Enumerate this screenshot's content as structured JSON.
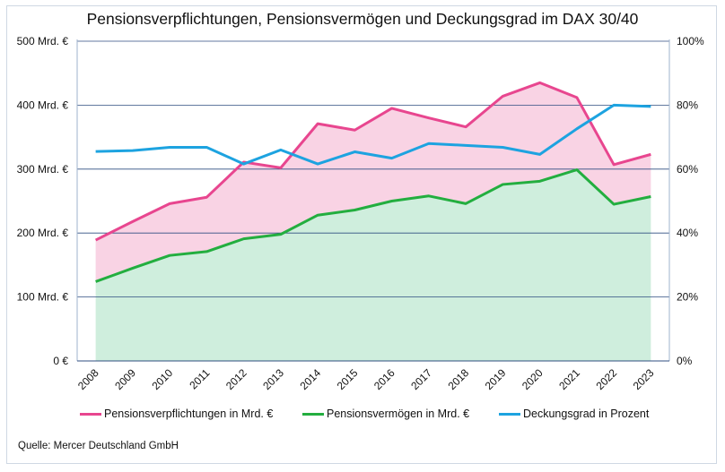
{
  "chart_data": {
    "type": "area",
    "title": "Pensionsverpflichtungen, Pensionsvermögen und Deckungsgrad im DAX 30/40",
    "source": "Quelle: Mercer Deutschland GmbH",
    "x": [
      "2008",
      "2009",
      "2010",
      "2011",
      "2012",
      "2013",
      "2014",
      "2015",
      "2016",
      "2017",
      "2018",
      "2019",
      "2020",
      "2021",
      "2022",
      "2023"
    ],
    "y_left": {
      "ticks": [
        "0 €",
        "100 Mrd. €",
        "200 Mrd. €",
        "300 Mrd. €",
        "400 Mrd. €",
        "500 Mrd. €"
      ],
      "ylim": [
        0,
        500
      ]
    },
    "y_right": {
      "ticks": [
        "0%",
        "20%",
        "40%",
        "60%",
        "80%",
        "100%"
      ],
      "ylim": [
        0,
        100
      ]
    },
    "series": [
      {
        "name": "Pensionsverpflichtungen in Mrd. €",
        "axis": "left",
        "color": "#e8468f",
        "fill": "#f9d3e4",
        "values": [
          189,
          218,
          246,
          256,
          311,
          302,
          371,
          361,
          395,
          380,
          366,
          414,
          435,
          412,
          307,
          323
        ]
      },
      {
        "name": "Pensionsvermögen in Mrd. €",
        "axis": "left",
        "color": "#23ae3f",
        "fill": "#cfeedd",
        "values": [
          124,
          145,
          165,
          171,
          191,
          198,
          228,
          236,
          250,
          258,
          246,
          276,
          281,
          299,
          245,
          257
        ]
      },
      {
        "name": "Deckungsgrad in Prozent",
        "axis": "right",
        "color": "#1da3e0",
        "values": [
          65.5,
          65.8,
          66.8,
          66.8,
          61.6,
          66,
          61.6,
          65.4,
          63.4,
          68,
          67.4,
          66.8,
          64.6,
          72.6,
          80,
          79.6
        ]
      }
    ],
    "grid": true,
    "legend_position": "bottom"
  }
}
